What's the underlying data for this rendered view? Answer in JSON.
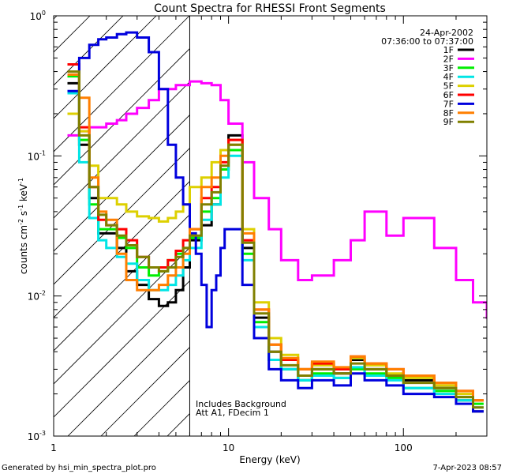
{
  "chart_data": {
    "type": "line",
    "title": "Count Spectra for RHESSI Front Segments",
    "xlabel": "Energy (keV)",
    "ylabel_parts": [
      "counts cm",
      "-2",
      " s",
      "-1",
      " keV",
      "-1"
    ],
    "xscale": "log",
    "yscale": "log",
    "xlim": [
      1,
      300
    ],
    "ylim": [
      0.001,
      1.0
    ],
    "xticks": [
      {
        "v": 1,
        "label": "1"
      },
      {
        "v": 10,
        "label": "10"
      },
      {
        "v": 100,
        "label": "100"
      }
    ],
    "yticks": [
      {
        "v": 1.0,
        "base": "10",
        "exp": "0"
      },
      {
        "v": 0.1,
        "base": "10",
        "exp": "-1"
      },
      {
        "v": 0.01,
        "base": "10",
        "exp": "-2"
      },
      {
        "v": 0.001,
        "base": "10",
        "exp": "-3"
      }
    ],
    "date": "24-Apr-2002",
    "time_range": "07:36:00 to 07:37:00",
    "annotation_lines": [
      "Includes Background",
      "Att A1, FDecim 1"
    ],
    "hatched_region_max_keV": 6,
    "series": [
      {
        "name": "1F",
        "color": "#000000",
        "x": [
          1.2,
          1.4,
          1.6,
          1.8,
          2,
          2.3,
          2.6,
          3,
          3.5,
          4,
          4.5,
          5,
          5.5,
          6,
          7,
          8,
          9,
          10,
          12,
          14,
          17,
          20,
          25,
          30,
          40,
          50,
          60,
          80,
          100,
          150,
          200,
          250
        ],
        "y": [
          0.33,
          0.12,
          0.05,
          0.028,
          0.028,
          0.022,
          0.015,
          0.012,
          0.0095,
          0.0085,
          0.009,
          0.011,
          0.016,
          0.025,
          0.032,
          0.045,
          0.08,
          0.14,
          0.022,
          0.007,
          0.004,
          0.003,
          0.0025,
          0.003,
          0.0028,
          0.0035,
          0.003,
          0.0027,
          0.0025,
          0.0022,
          0.0018,
          0.0015
        ]
      },
      {
        "name": "2F",
        "color": "#ff00ff",
        "x": [
          1.2,
          1.4,
          1.6,
          1.8,
          2,
          2.3,
          2.6,
          3,
          3.5,
          4,
          4.5,
          5,
          5.5,
          6,
          7,
          8,
          9,
          10,
          12,
          14,
          17,
          20,
          25,
          30,
          40,
          50,
          60,
          80,
          100,
          150,
          200,
          250,
          300
        ],
        "y": [
          0.14,
          0.15,
          0.16,
          0.16,
          0.17,
          0.18,
          0.2,
          0.22,
          0.25,
          0.3,
          0.3,
          0.32,
          0.32,
          0.34,
          0.33,
          0.32,
          0.25,
          0.17,
          0.09,
          0.05,
          0.03,
          0.018,
          0.013,
          0.014,
          0.018,
          0.025,
          0.04,
          0.027,
          0.036,
          0.022,
          0.013,
          0.009,
          0.007
        ]
      },
      {
        "name": "3F",
        "color": "#00ee00",
        "x": [
          1.2,
          1.4,
          1.6,
          1.8,
          2,
          2.3,
          2.6,
          3,
          3.5,
          4,
          4.5,
          5,
          5.5,
          6,
          7,
          8,
          9,
          10,
          12,
          14,
          17,
          20,
          25,
          30,
          40,
          50,
          60,
          80,
          100,
          150,
          200,
          250
        ],
        "y": [
          0.37,
          0.13,
          0.045,
          0.03,
          0.03,
          0.026,
          0.022,
          0.016,
          0.014,
          0.015,
          0.018,
          0.02,
          0.022,
          0.026,
          0.04,
          0.05,
          0.08,
          0.11,
          0.02,
          0.0065,
          0.0035,
          0.003,
          0.0025,
          0.0028,
          0.0026,
          0.003,
          0.0028,
          0.0026,
          0.0022,
          0.0021,
          0.0019,
          0.0017
        ]
      },
      {
        "name": "4F",
        "color": "#00e5e5",
        "x": [
          1.2,
          1.4,
          1.6,
          1.8,
          2,
          2.3,
          2.6,
          3,
          3.5,
          4,
          4.5,
          5,
          5.5,
          6,
          7,
          8,
          9,
          10,
          12,
          14,
          17,
          20,
          25,
          30,
          40,
          50,
          60,
          80,
          100,
          150,
          200,
          250
        ],
        "y": [
          0.28,
          0.09,
          0.036,
          0.025,
          0.022,
          0.019,
          0.017,
          0.013,
          0.011,
          0.011,
          0.012,
          0.014,
          0.018,
          0.022,
          0.035,
          0.045,
          0.07,
          0.1,
          0.018,
          0.006,
          0.0035,
          0.003,
          0.0025,
          0.0027,
          0.0026,
          0.0031,
          0.0027,
          0.0025,
          0.0022,
          0.002,
          0.0018,
          0.0016
        ]
      },
      {
        "name": "5F",
        "color": "#ddd000",
        "x": [
          1.2,
          1.4,
          1.6,
          1.8,
          2,
          2.3,
          2.6,
          3,
          3.5,
          4,
          4.5,
          5,
          5.5,
          6,
          7,
          8,
          9,
          10,
          12,
          14,
          17,
          20,
          25,
          30,
          40,
          50,
          60,
          80,
          100,
          150,
          200,
          250
        ],
        "y": [
          0.2,
          0.15,
          0.085,
          0.05,
          0.05,
          0.045,
          0.04,
          0.037,
          0.036,
          0.034,
          0.036,
          0.04,
          0.045,
          0.06,
          0.07,
          0.09,
          0.11,
          0.13,
          0.03,
          0.009,
          0.005,
          0.0038,
          0.003,
          0.0032,
          0.003,
          0.0036,
          0.0032,
          0.0028,
          0.0026,
          0.0023,
          0.002,
          0.0018
        ]
      },
      {
        "name": "6F",
        "color": "#ff0000",
        "x": [
          1.2,
          1.4,
          1.6,
          1.8,
          2,
          2.3,
          2.6,
          3,
          3.5,
          4,
          4.5,
          5,
          5.5,
          6,
          7,
          8,
          9,
          10,
          12,
          14,
          17,
          20,
          25,
          30,
          40,
          50,
          60,
          80,
          100,
          150,
          200,
          250
        ],
        "y": [
          0.45,
          0.16,
          0.06,
          0.035,
          0.032,
          0.03,
          0.025,
          0.019,
          0.016,
          0.016,
          0.018,
          0.021,
          0.025,
          0.03,
          0.05,
          0.06,
          0.09,
          0.13,
          0.025,
          0.008,
          0.0045,
          0.0035,
          0.003,
          0.0033,
          0.003,
          0.0037,
          0.0033,
          0.003,
          0.0027,
          0.0024,
          0.0021,
          0.0018
        ]
      },
      {
        "name": "7F",
        "color": "#0000dd",
        "x": [
          1.2,
          1.4,
          1.6,
          1.8,
          2,
          2.3,
          2.6,
          3,
          3.5,
          4,
          4.5,
          5,
          5.5,
          6,
          6.5,
          7,
          7.5,
          8,
          8.5,
          9,
          9.5,
          10,
          12,
          14,
          17,
          20,
          25,
          30,
          40,
          50,
          60,
          80,
          100,
          150,
          200,
          250
        ],
        "y": [
          0.29,
          0.5,
          0.62,
          0.68,
          0.7,
          0.74,
          0.76,
          0.7,
          0.55,
          0.3,
          0.12,
          0.07,
          0.045,
          0.028,
          0.02,
          0.012,
          0.006,
          0.011,
          0.014,
          0.022,
          0.03,
          0.03,
          0.012,
          0.005,
          0.003,
          0.0025,
          0.0022,
          0.0025,
          0.0023,
          0.0028,
          0.0025,
          0.0023,
          0.002,
          0.0019,
          0.0017,
          0.0015
        ]
      },
      {
        "name": "8F",
        "color": "#ff7f00",
        "x": [
          1.2,
          1.4,
          1.6,
          1.8,
          2,
          2.3,
          2.6,
          3,
          3.5,
          4,
          4.5,
          5,
          5.5,
          6,
          7,
          8,
          9,
          10,
          12,
          14,
          17,
          20,
          25,
          30,
          40,
          50,
          60,
          80,
          100,
          150,
          200,
          250
        ],
        "y": [
          0.38,
          0.26,
          0.07,
          0.04,
          0.035,
          0.02,
          0.013,
          0.011,
          0.011,
          0.012,
          0.014,
          0.016,
          0.02,
          0.03,
          0.06,
          0.07,
          0.1,
          0.12,
          0.028,
          0.008,
          0.0045,
          0.0036,
          0.003,
          0.0034,
          0.0031,
          0.0037,
          0.0033,
          0.003,
          0.0027,
          0.0024,
          0.0021,
          0.0018
        ]
      },
      {
        "name": "9F",
        "color": "#808000",
        "x": [
          1.2,
          1.4,
          1.6,
          1.8,
          2,
          2.3,
          2.6,
          3,
          3.5,
          4,
          4.5,
          5,
          5.5,
          6,
          7,
          8,
          9,
          10,
          12,
          14,
          17,
          20,
          25,
          30,
          40,
          50,
          60,
          80,
          100,
          150,
          200,
          250
        ],
        "y": [
          0.4,
          0.14,
          0.06,
          0.038,
          0.032,
          0.027,
          0.023,
          0.019,
          0.016,
          0.015,
          0.016,
          0.019,
          0.022,
          0.027,
          0.045,
          0.055,
          0.085,
          0.12,
          0.024,
          0.0075,
          0.004,
          0.0032,
          0.0027,
          0.003,
          0.0028,
          0.0033,
          0.003,
          0.0027,
          0.0024,
          0.0022,
          0.0019,
          0.0016
        ]
      }
    ]
  },
  "footer": {
    "generated_by": "Generated by hsi_min_spectra_plot.pro",
    "date": "7-Apr-2023 08:57"
  }
}
